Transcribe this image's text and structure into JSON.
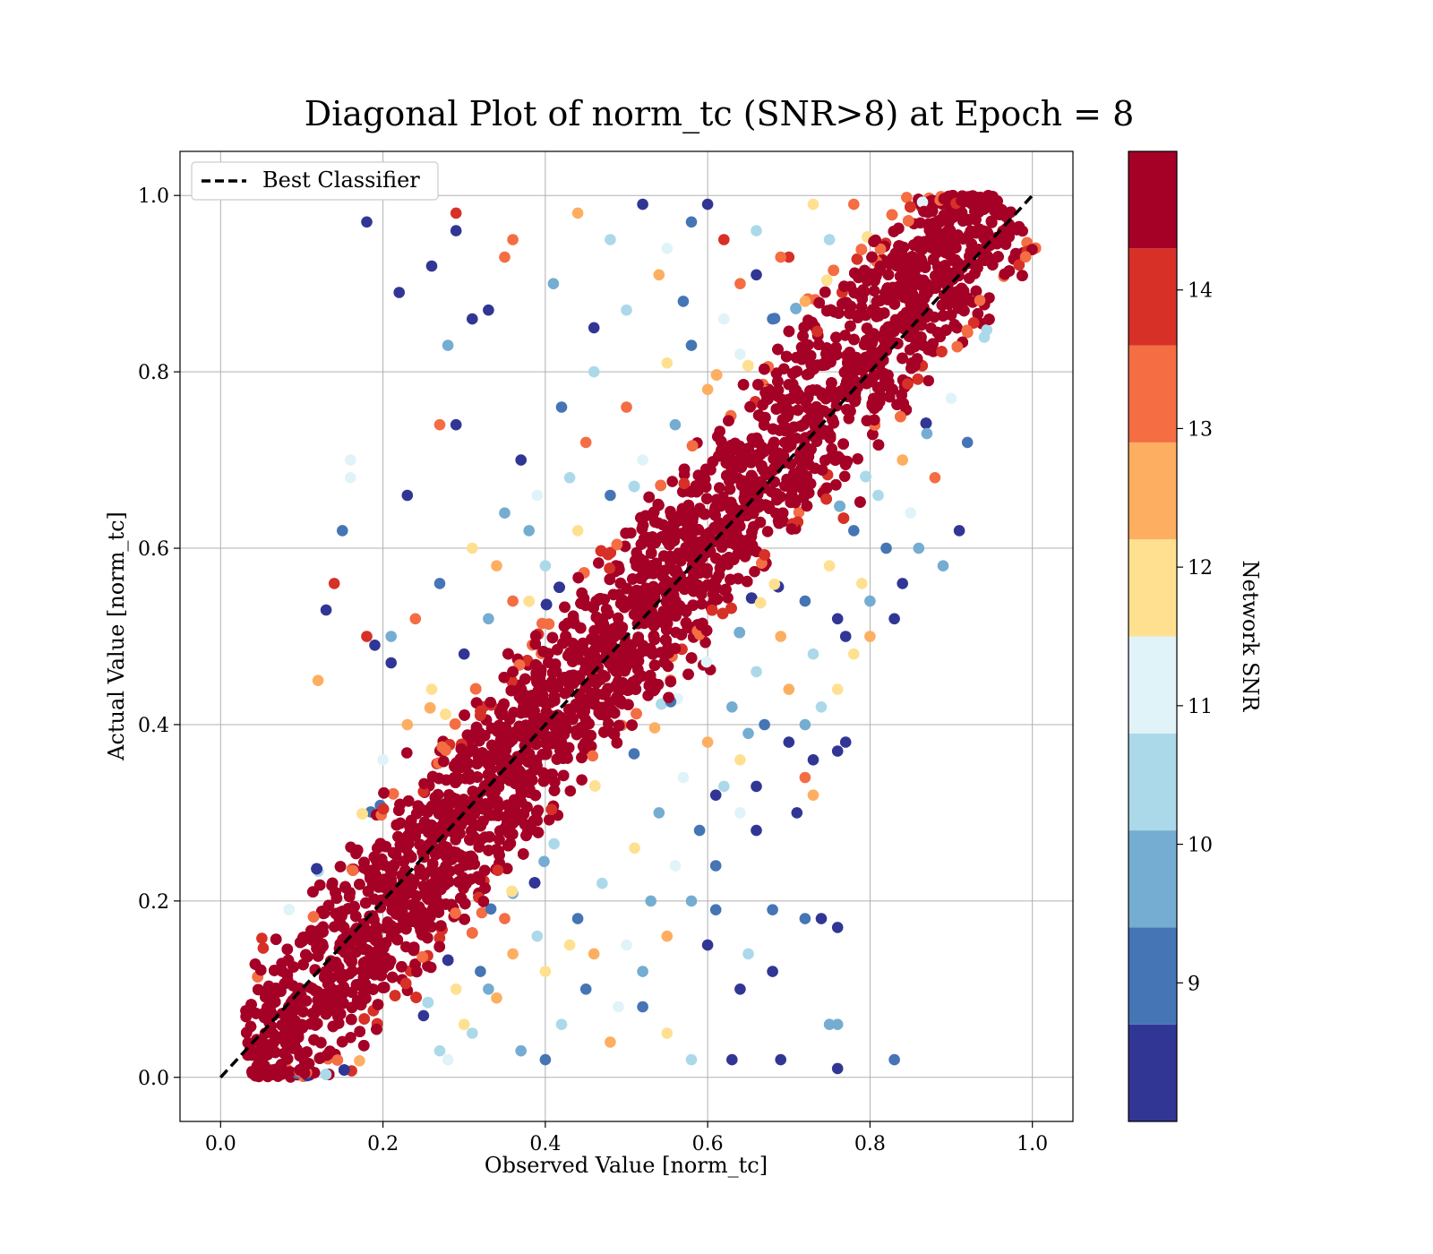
{
  "chart_data": {
    "type": "scatter",
    "title": "Diagonal Plot of norm_tc (SNR>8) at Epoch = 8",
    "xlabel": "Observed Value [norm_tc]",
    "ylabel": "Actual Value [norm_tc]",
    "xlim": [
      -0.05,
      1.05
    ],
    "ylim": [
      -0.05,
      1.05
    ],
    "xticks": [
      "0.0",
      "0.2",
      "0.4",
      "0.6",
      "0.8",
      "1.0"
    ],
    "yticks": [
      "0.0",
      "0.2",
      "0.4",
      "0.6",
      "0.8",
      "1.0"
    ],
    "grid": true,
    "legend": {
      "placement": "upper-left",
      "entries": [
        {
          "label": "Best Classifier",
          "style": "dashed",
          "color": "#000000"
        }
      ]
    },
    "reference_line": {
      "name": "Best Classifier",
      "x": [
        0.0,
        1.0
      ],
      "y": [
        0.0,
        1.0
      ]
    },
    "colorbar": {
      "label": "Network SNR",
      "ticks": [
        "9",
        "10",
        "11",
        "12",
        "13",
        "14"
      ],
      "range": [
        8.0,
        15.0
      ],
      "colormap": [
        "#313695",
        "#4575b4",
        "#74add1",
        "#abd9e9",
        "#e0f3f8",
        "#fee090",
        "#fdae61",
        "#f46d43",
        "#d73027",
        "#a50026"
      ],
      "bins": [
        {
          "from": 8.0,
          "to": 8.7,
          "color": "#313695"
        },
        {
          "from": 8.7,
          "to": 9.4,
          "color": "#4575b4"
        },
        {
          "from": 9.4,
          "to": 10.1,
          "color": "#74add1"
        },
        {
          "from": 10.1,
          "to": 10.8,
          "color": "#abd9e9"
        },
        {
          "from": 10.8,
          "to": 11.5,
          "color": "#e0f3f8"
        },
        {
          "from": 11.5,
          "to": 12.2,
          "color": "#fee090"
        },
        {
          "from": 12.2,
          "to": 12.9,
          "color": "#fdae61"
        },
        {
          "from": 12.9,
          "to": 13.6,
          "color": "#f46d43"
        },
        {
          "from": 13.6,
          "to": 14.3,
          "color": "#d73027"
        },
        {
          "from": 14.3,
          "to": 15.0,
          "color": "#a50026"
        }
      ]
    },
    "series": [
      {
        "color_by": "Network SNR",
        "points": [
          [
            0.18,
            0.97,
            8.2
          ],
          [
            0.29,
            0.96,
            8.5
          ],
          [
            0.29,
            0.98,
            14.0
          ],
          [
            0.26,
            0.92,
            8.3
          ],
          [
            0.22,
            0.89,
            8.4
          ],
          [
            0.35,
            0.93,
            13.3
          ],
          [
            0.36,
            0.95,
            13.3
          ],
          [
            0.33,
            0.87,
            8.3
          ],
          [
            0.31,
            0.86,
            8.2
          ],
          [
            0.28,
            0.83,
            9.8
          ],
          [
            0.27,
            0.74,
            13.0
          ],
          [
            0.23,
            0.66,
            8.6
          ],
          [
            0.29,
            0.74,
            8.4
          ],
          [
            0.16,
            0.7,
            11.2
          ],
          [
            0.16,
            0.68,
            11.0
          ],
          [
            0.15,
            0.62,
            9.1
          ],
          [
            0.14,
            0.56,
            14.0
          ],
          [
            0.13,
            0.53,
            8.4
          ],
          [
            0.18,
            0.5,
            14.0
          ],
          [
            0.19,
            0.49,
            8.6
          ],
          [
            0.21,
            0.47,
            8.3
          ],
          [
            0.12,
            0.45,
            12.5
          ],
          [
            0.44,
            0.98,
            12.2
          ],
          [
            0.48,
            0.95,
            10.6
          ],
          [
            0.52,
            0.99,
            8.2
          ],
          [
            0.55,
            0.94,
            10.8
          ],
          [
            0.58,
            0.97,
            8.7
          ],
          [
            0.62,
            0.95,
            14.2
          ],
          [
            0.6,
            0.99,
            8.2
          ],
          [
            0.41,
            0.9,
            9.5
          ],
          [
            0.46,
            0.85,
            8.4
          ],
          [
            0.5,
            0.87,
            10.2
          ],
          [
            0.54,
            0.91,
            12.3
          ],
          [
            0.58,
            0.83,
            9.1
          ],
          [
            0.64,
            0.9,
            13.0
          ],
          [
            0.66,
            0.96,
            10.5
          ],
          [
            0.7,
            0.93,
            13.6
          ],
          [
            0.73,
            0.99,
            11.8
          ],
          [
            0.75,
            0.95,
            10.1
          ],
          [
            0.78,
            0.99,
            13.4
          ],
          [
            0.68,
            0.86,
            9.3
          ],
          [
            0.72,
            0.88,
            12.6
          ],
          [
            0.64,
            0.82,
            11.0
          ],
          [
            0.6,
            0.78,
            12.8
          ],
          [
            0.56,
            0.74,
            9.9
          ],
          [
            0.52,
            0.7,
            11.4
          ],
          [
            0.48,
            0.66,
            8.8
          ],
          [
            0.44,
            0.62,
            12.1
          ],
          [
            0.4,
            0.58,
            10.4
          ],
          [
            0.36,
            0.54,
            13.2
          ],
          [
            0.33,
            0.52,
            9.6
          ],
          [
            0.3,
            0.48,
            8.6
          ],
          [
            0.26,
            0.44,
            11.9
          ],
          [
            0.23,
            0.4,
            12.4
          ],
          [
            0.2,
            0.36,
            10.9
          ],
          [
            0.37,
            0.7,
            8.4
          ],
          [
            0.42,
            0.76,
            9.2
          ],
          [
            0.46,
            0.8,
            10.5
          ],
          [
            0.5,
            0.76,
            13.1
          ],
          [
            0.55,
            0.81,
            11.6
          ],
          [
            0.35,
            0.64,
            10.0
          ],
          [
            0.31,
            0.6,
            12.0
          ],
          [
            0.27,
            0.56,
            8.9
          ],
          [
            0.24,
            0.52,
            13.3
          ],
          [
            0.21,
            0.5,
            9.7
          ],
          [
            0.57,
            0.88,
            9.0
          ],
          [
            0.62,
            0.86,
            11.3
          ],
          [
            0.66,
            0.91,
            8.6
          ],
          [
            0.69,
            0.93,
            12.9
          ],
          [
            0.45,
            0.72,
            13.5
          ],
          [
            0.39,
            0.66,
            11.1
          ],
          [
            0.34,
            0.58,
            12.7
          ],
          [
            0.38,
            0.62,
            9.4
          ],
          [
            0.43,
            0.68,
            10.7
          ],
          [
            0.69,
            0.02,
            8.2
          ],
          [
            0.75,
            0.06,
            9.5
          ],
          [
            0.76,
            0.06,
            9.7
          ],
          [
            0.76,
            0.01,
            8.3
          ],
          [
            0.76,
            0.17,
            8.2
          ],
          [
            0.74,
            0.18,
            8.6
          ],
          [
            0.72,
            0.18,
            8.7
          ],
          [
            0.68,
            0.19,
            8.9
          ],
          [
            0.68,
            0.12,
            8.2
          ],
          [
            0.65,
            0.14,
            10.4
          ],
          [
            0.64,
            0.1,
            8.3
          ],
          [
            0.63,
            0.02,
            8.5
          ],
          [
            0.77,
            0.38,
            8.4
          ],
          [
            0.76,
            0.37,
            8.2
          ],
          [
            0.73,
            0.36,
            8.4
          ],
          [
            0.72,
            0.34,
            13.4
          ],
          [
            0.73,
            0.32,
            12.5
          ],
          [
            0.71,
            0.3,
            8.5
          ],
          [
            0.7,
            0.38,
            8.3
          ],
          [
            0.65,
            0.39,
            9.9
          ],
          [
            0.66,
            0.33,
            8.4
          ],
          [
            0.66,
            0.28,
            8.6
          ],
          [
            0.64,
            0.3,
            11.0
          ],
          [
            0.61,
            0.24,
            8.7
          ],
          [
            0.61,
            0.19,
            9.1
          ],
          [
            0.6,
            0.15,
            8.2
          ],
          [
            0.78,
            0.48,
            11.9
          ],
          [
            0.77,
            0.5,
            8.3
          ],
          [
            0.76,
            0.44,
            11.6
          ],
          [
            0.74,
            0.42,
            10.2
          ],
          [
            0.72,
            0.4,
            9.4
          ],
          [
            0.83,
            0.02,
            9.0
          ],
          [
            0.58,
            0.02,
            10.1
          ],
          [
            0.55,
            0.05,
            11.5
          ],
          [
            0.52,
            0.08,
            9.3
          ],
          [
            0.48,
            0.04,
            12.2
          ],
          [
            0.45,
            0.1,
            8.9
          ],
          [
            0.42,
            0.06,
            10.6
          ],
          [
            0.4,
            0.12,
            11.8
          ],
          [
            0.37,
            0.03,
            9.7
          ],
          [
            0.34,
            0.09,
            12.6
          ],
          [
            0.31,
            0.05,
            10.3
          ],
          [
            0.28,
            0.02,
            11.2
          ],
          [
            0.25,
            0.07,
            8.5
          ],
          [
            0.5,
            0.15,
            10.9
          ],
          [
            0.53,
            0.2,
            9.6
          ],
          [
            0.56,
            0.24,
            11.3
          ],
          [
            0.59,
            0.28,
            8.8
          ],
          [
            0.62,
            0.33,
            10.5
          ],
          [
            0.46,
            0.14,
            12.4
          ],
          [
            0.44,
            0.18,
            9.1
          ],
          [
            0.47,
            0.22,
            10.7
          ],
          [
            0.51,
            0.26,
            12.0
          ],
          [
            0.54,
            0.3,
            9.4
          ],
          [
            0.57,
            0.34,
            11.1
          ],
          [
            0.6,
            0.38,
            12.3
          ],
          [
            0.63,
            0.42,
            9.8
          ],
          [
            0.66,
            0.46,
            10.4
          ],
          [
            0.69,
            0.5,
            12.8
          ],
          [
            0.72,
            0.54,
            9.2
          ],
          [
            0.75,
            0.58,
            11.7
          ],
          [
            0.78,
            0.62,
            8.7
          ],
          [
            0.81,
            0.66,
            10.1
          ],
          [
            0.84,
            0.7,
            12.5
          ],
          [
            0.87,
            0.73,
            9.6
          ],
          [
            0.9,
            0.77,
            11.4
          ],
          [
            0.92,
            0.72,
            8.9
          ],
          [
            0.88,
            0.68,
            12.9
          ],
          [
            0.85,
            0.64,
            10.8
          ],
          [
            0.82,
            0.6,
            9.3
          ],
          [
            0.79,
            0.56,
            11.9
          ],
          [
            0.76,
            0.52,
            8.6
          ],
          [
            0.73,
            0.48,
            10.2
          ],
          [
            0.7,
            0.44,
            12.2
          ],
          [
            0.67,
            0.4,
            9.0
          ],
          [
            0.64,
            0.36,
            11.5
          ],
          [
            0.61,
            0.32,
            8.4
          ],
          [
            0.58,
            0.2,
            10.0
          ],
          [
            0.55,
            0.16,
            12.7
          ],
          [
            0.52,
            0.12,
            9.9
          ],
          [
            0.49,
            0.08,
            11.0
          ],
          [
            0.36,
            0.14,
            12.3
          ],
          [
            0.33,
            0.1,
            9.5
          ],
          [
            0.3,
            0.06,
            11.8
          ],
          [
            0.27,
            0.03,
            10.4
          ],
          [
            0.4,
            0.02,
            8.8
          ],
          [
            0.43,
            0.15,
            12.0
          ],
          [
            0.39,
            0.16,
            10.6
          ],
          [
            0.35,
            0.18,
            12.9
          ],
          [
            0.32,
            0.12,
            9.2
          ],
          [
            0.29,
            0.1,
            11.6
          ],
          [
            0.91,
            0.62,
            8.2
          ],
          [
            0.89,
            0.58,
            9.6
          ],
          [
            0.86,
            0.6,
            9.8
          ],
          [
            0.84,
            0.56,
            8.3
          ],
          [
            0.8,
            0.54,
            9.4
          ],
          [
            0.83,
            0.52,
            8.5
          ],
          [
            0.8,
            0.5,
            12.6
          ]
        ]
      }
    ],
    "band": {
      "description_source": "dense points along the diagonal",
      "center": [
        [
          0.03,
          0.0
        ],
        [
          0.96,
          1.0
        ]
      ],
      "half_width": 0.11
    }
  }
}
